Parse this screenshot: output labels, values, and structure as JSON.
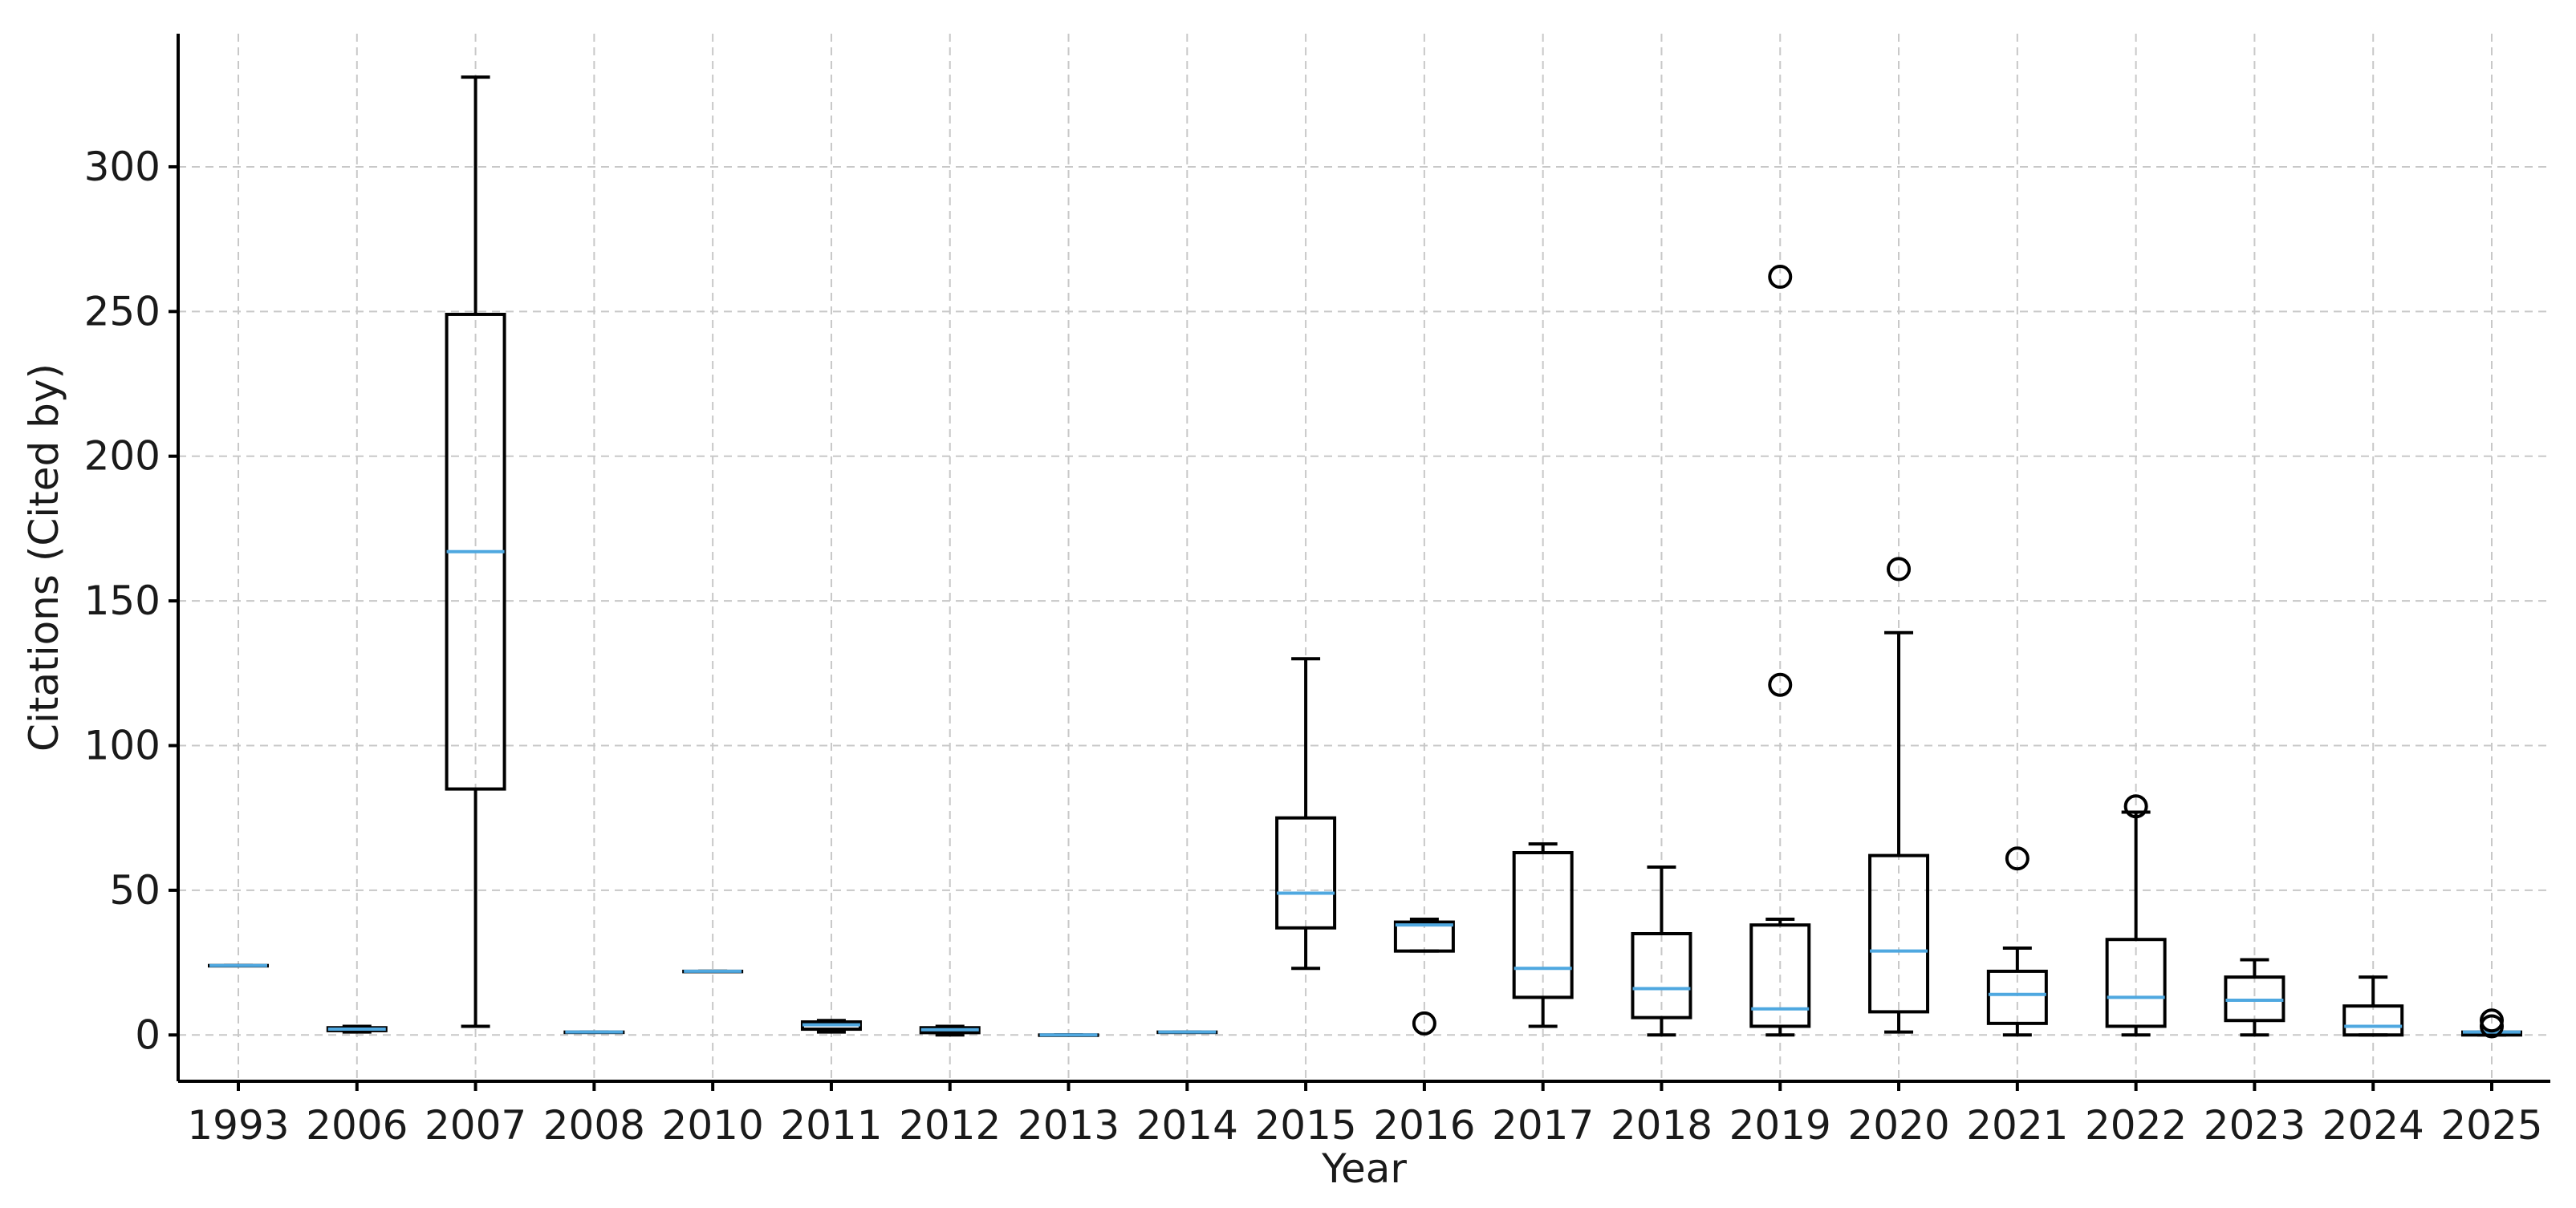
{
  "chart_data": {
    "type": "box",
    "xlabel": "Year",
    "ylabel": "Citations (Cited by)",
    "ylim": [
      -16,
      346
    ],
    "yticks": [
      0,
      50,
      100,
      150,
      200,
      250,
      300
    ],
    "grid": true,
    "colors": {
      "box": "#000000",
      "median": "#4fa8e0",
      "grid": "#c8c8c8"
    },
    "categories": [
      "1993",
      "2006",
      "2007",
      "2008",
      "2010",
      "2011",
      "2012",
      "2013",
      "2014",
      "2015",
      "2016",
      "2017",
      "2018",
      "2019",
      "2020",
      "2021",
      "2022",
      "2023",
      "2024",
      "2025"
    ],
    "boxes": [
      {
        "year": "1993",
        "whislo": 24,
        "q1": 24,
        "median": 24,
        "q3": 24,
        "whishi": 24,
        "fliers": []
      },
      {
        "year": "2006",
        "whislo": 1,
        "q1": 1.5,
        "median": 2,
        "q3": 2.5,
        "whishi": 3,
        "fliers": []
      },
      {
        "year": "2007",
        "whislo": 3,
        "q1": 85,
        "median": 167,
        "q3": 249,
        "whishi": 331,
        "fliers": []
      },
      {
        "year": "2008",
        "whislo": 1,
        "q1": 1,
        "median": 1,
        "q3": 1,
        "whishi": 1,
        "fliers": []
      },
      {
        "year": "2010",
        "whislo": 22,
        "q1": 22,
        "median": 22,
        "q3": 22,
        "whishi": 22,
        "fliers": []
      },
      {
        "year": "2011",
        "whislo": 1,
        "q1": 2,
        "median": 3.5,
        "q3": 4.5,
        "whishi": 5,
        "fliers": []
      },
      {
        "year": "2012",
        "whislo": 0,
        "q1": 0.8,
        "median": 1.8,
        "q3": 2.5,
        "whishi": 3,
        "fliers": []
      },
      {
        "year": "2013",
        "whislo": 0,
        "q1": 0,
        "median": 0,
        "q3": 0,
        "whishi": 0,
        "fliers": []
      },
      {
        "year": "2014",
        "whislo": 1,
        "q1": 1,
        "median": 1,
        "q3": 1,
        "whishi": 1,
        "fliers": []
      },
      {
        "year": "2015",
        "whislo": 23,
        "q1": 37,
        "median": 49,
        "q3": 75,
        "whishi": 130,
        "fliers": []
      },
      {
        "year": "2016",
        "whislo": 29,
        "q1": 29,
        "median": 38,
        "q3": 39,
        "whishi": 40,
        "fliers": [
          4
        ]
      },
      {
        "year": "2017",
        "whislo": 3,
        "q1": 13,
        "median": 23,
        "q3": 63,
        "whishi": 66,
        "fliers": []
      },
      {
        "year": "2018",
        "whislo": 0,
        "q1": 6,
        "median": 16,
        "q3": 35,
        "whishi": 58,
        "fliers": []
      },
      {
        "year": "2019",
        "whislo": 0,
        "q1": 3,
        "median": 9,
        "q3": 38,
        "whishi": 40,
        "fliers": [
          121,
          262
        ]
      },
      {
        "year": "2020",
        "whislo": 1,
        "q1": 8,
        "median": 29,
        "q3": 62,
        "whishi": 139,
        "fliers": [
          161
        ]
      },
      {
        "year": "2021",
        "whislo": 0,
        "q1": 4,
        "median": 14,
        "q3": 22,
        "whishi": 30,
        "fliers": [
          61
        ]
      },
      {
        "year": "2022",
        "whislo": 0,
        "q1": 3,
        "median": 13,
        "q3": 33,
        "whishi": 77,
        "fliers": [
          79
        ]
      },
      {
        "year": "2023",
        "whislo": 0,
        "q1": 5,
        "median": 12,
        "q3": 20,
        "whishi": 26,
        "fliers": []
      },
      {
        "year": "2024",
        "whislo": 0,
        "q1": 0,
        "median": 3,
        "q3": 10,
        "whishi": 20,
        "fliers": []
      },
      {
        "year": "2025",
        "whislo": 0,
        "q1": 0,
        "median": 1,
        "q3": 1,
        "whishi": 1,
        "fliers": [
          3,
          5
        ]
      }
    ]
  }
}
